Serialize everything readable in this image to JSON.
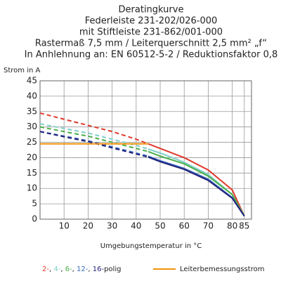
{
  "chart_data": {
    "type": "line",
    "title": [
      "Deratingkurve",
      "Federleiste 231-202/026-000",
      "mit Stiftleiste 231-862/001-000",
      "Rastermaß 7,5 mm / Leiterquerschnitt 2,5 mm² „f“",
      "In Anhlehnung an: EN 60512-5-2 / Reduktionsfaktor 0,8"
    ],
    "y_label": "Strom in A",
    "x_label": "Umgebungstemperatur in °C",
    "x": [
      0,
      10,
      20,
      30,
      40,
      45,
      50,
      60,
      70,
      80,
      85
    ],
    "series": [
      {
        "name": "2-",
        "color": "#e0392b",
        "values": [
          34.5,
          32.5,
          30.5,
          28.5,
          26,
          24.5,
          23,
          20,
          16,
          9.5,
          1
        ]
      },
      {
        "name": "4-",
        "color": "#7fcfc8",
        "values": [
          31,
          29.5,
          28,
          26,
          24,
          22.8,
          21.5,
          18.5,
          14.5,
          8,
          1
        ]
      },
      {
        "name": "6-",
        "color": "#4aae4a",
        "values": [
          30,
          28.5,
          27,
          25,
          23,
          22,
          20.5,
          18,
          14,
          8,
          1
        ]
      },
      {
        "name": "12-",
        "color": "#3a6cc0",
        "values": [
          28.5,
          27,
          25.5,
          23.5,
          21.5,
          20.5,
          19,
          16.5,
          13,
          7,
          1
        ]
      },
      {
        "name": "16-",
        "color": "#23237a",
        "values": [
          28.5,
          26.8,
          25.2,
          23.2,
          21.2,
          20.2,
          18.7,
          16.2,
          12.6,
          6.8,
          1
        ]
      }
    ],
    "legend_separator": ", ",
    "legend_suffix": "polig",
    "rated_current": {
      "name": "Leiterbemessungsstrom",
      "color": "#f0920c",
      "x": [
        0,
        45
      ],
      "values": [
        24.5,
        24.5
      ]
    },
    "xlim": [
      0,
      88
    ],
    "ylim": [
      0,
      45
    ],
    "xticks": [
      10,
      20,
      30,
      40,
      50,
      60,
      70,
      80,
      85
    ],
    "yticks": [
      0,
      5,
      10,
      15,
      20,
      25,
      30,
      35,
      40,
      45
    ],
    "grid": true
  }
}
